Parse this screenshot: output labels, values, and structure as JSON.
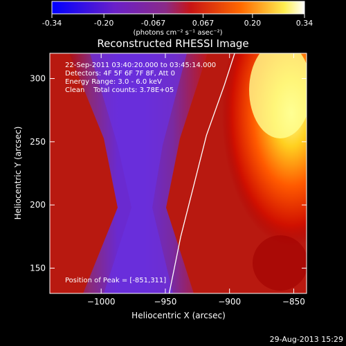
{
  "colorbar": {
    "tick_labels": [
      "-0.34",
      "-0.20",
      "-0.067",
      "0.067",
      "0.20",
      "0.34"
    ],
    "unit_label": "(photons cm⁻² s⁻¹ asec⁻²)",
    "range": [
      -0.34,
      0.34
    ]
  },
  "chart_data": {
    "type": "heatmap",
    "title": "Reconstructed RHESSI Image",
    "xlabel": "Heliocentric X (arcsec)",
    "ylabel": "Heliocentric Y (arcsec)",
    "xlim": [
      -1040,
      -840
    ],
    "ylim": [
      130,
      320
    ],
    "x_ticks": [
      -1000,
      -950,
      -900,
      -850
    ],
    "x_tick_labels": [
      "−1000",
      "−950",
      "−900",
      "−850"
    ],
    "y_ticks": [
      150,
      200,
      250,
      300
    ],
    "y_tick_labels": [
      "150",
      "200",
      "250",
      "300"
    ],
    "limb_curve_x_at_y": [
      [
        -947,
        130
      ],
      [
        -938,
        175
      ],
      [
        -928,
        215
      ],
      [
        -918,
        255
      ],
      [
        -904,
        295
      ],
      [
        -896,
        320
      ]
    ],
    "peak_position": [
      -851,
      311
    ],
    "annotations": {
      "time_range": "22-Sep-2011 03:40:20.000 to 03:45:14.000",
      "detectors": "Detectors: 4F 5F 6F 7F 8F, Att 0",
      "energy_range": "Energy Range: 3.0 - 6.0 keV",
      "clean_line": "Clean    Total counts: 3.78E+05",
      "peak_text": "Position of Peak = [-851,311]"
    },
    "colormap": [
      "#0000ff",
      "#6020c0",
      "#8030a0",
      "#d01010",
      "#ff6000",
      "#ffff80",
      "#ffffff"
    ]
  },
  "footer": {
    "timestamp": "29-Aug-2013 15:29"
  }
}
